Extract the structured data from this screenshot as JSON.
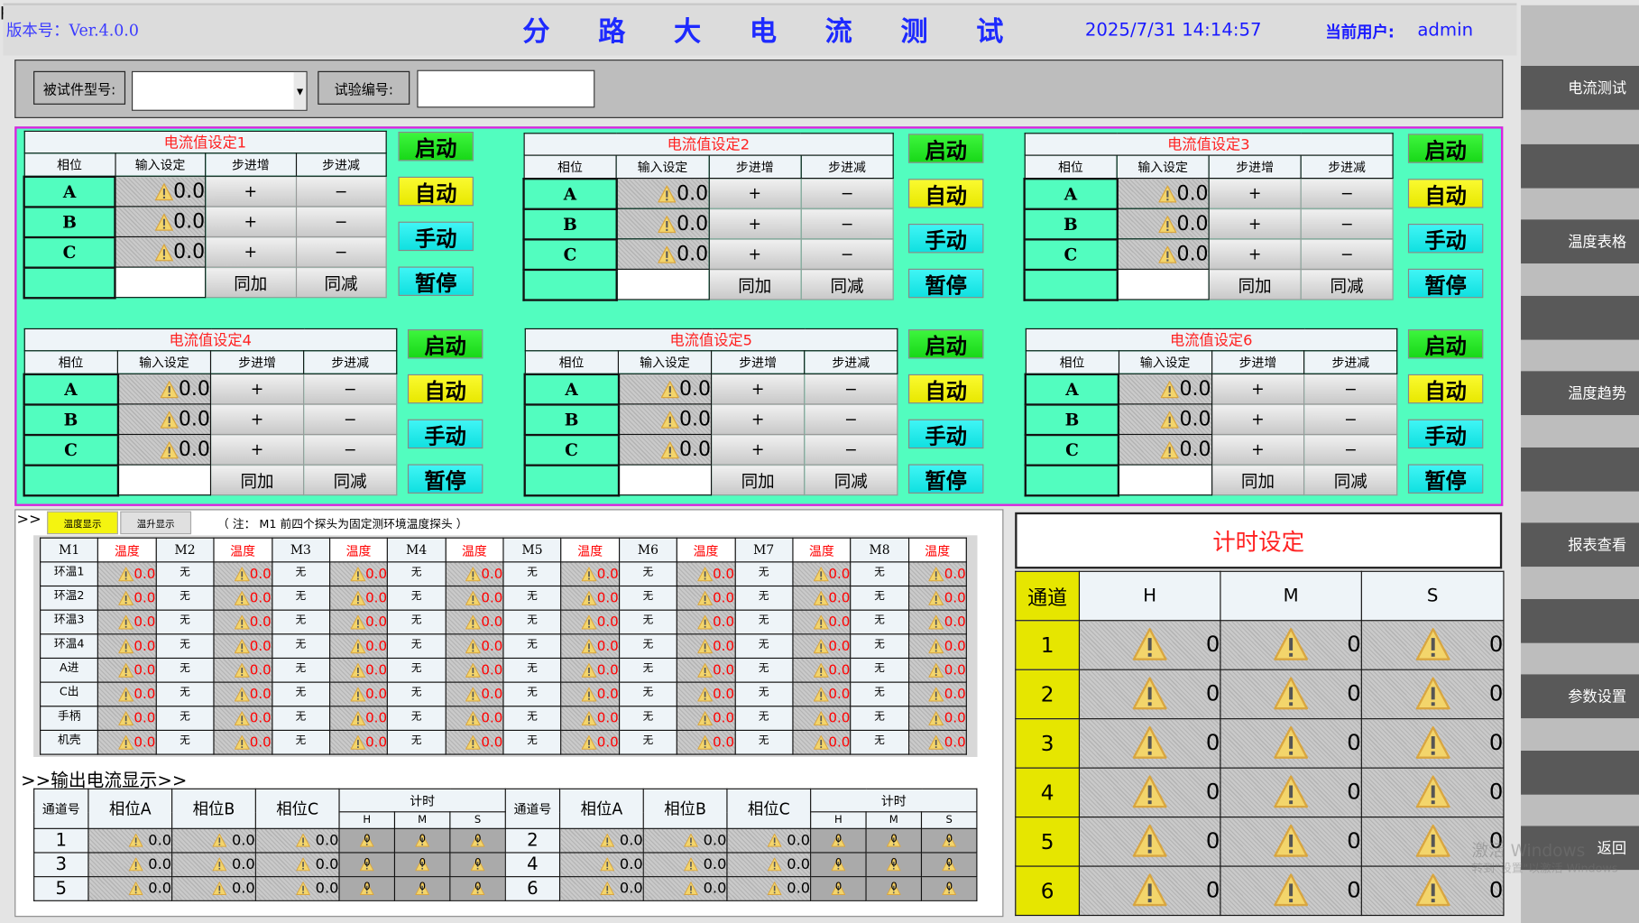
{
  "header": {
    "version": "版本号：Ver.4.0.0",
    "title_chars": [
      "分",
      "路",
      "大",
      "电",
      "流",
      "测",
      "试"
    ],
    "datetime": "2025/7/31 14:14:57",
    "user_label": "当前用户:",
    "user": "admin"
  },
  "inputs": {
    "model_label": "被试件型号:",
    "model_value": "",
    "test_no_label": "试验编号:",
    "test_no_value": ""
  },
  "settings_common": {
    "columns": [
      "相位",
      "输入设定",
      "步进增",
      "步进减"
    ],
    "plus": "+",
    "minus": "−",
    "same_add": "同加",
    "same_sub": "同减",
    "start": "启动",
    "auto": "自动",
    "manual": "手动",
    "pause": "暂停"
  },
  "settings": [
    {
      "title": "电流值设定1",
      "phases": [
        {
          "name": "A",
          "value": "0.0"
        },
        {
          "name": "B",
          "value": "0.0"
        },
        {
          "name": "C",
          "value": "0.0"
        }
      ],
      "extra_value": ""
    },
    {
      "title": "电流值设定2",
      "phases": [
        {
          "name": "A",
          "value": "0.0"
        },
        {
          "name": "B",
          "value": "0.0"
        },
        {
          "name": "C",
          "value": "0.0"
        }
      ],
      "extra_value": ""
    },
    {
      "title": "电流值设定3",
      "phases": [
        {
          "name": "A",
          "value": "0.0"
        },
        {
          "name": "B",
          "value": "0.0"
        },
        {
          "name": "C",
          "value": "0.0"
        }
      ],
      "extra_value": ""
    },
    {
      "title": "电流值设定4",
      "phases": [
        {
          "name": "A",
          "value": "0.0"
        },
        {
          "name": "B",
          "value": "0.0"
        },
        {
          "name": "C",
          "value": "0.0"
        }
      ],
      "extra_value": ""
    },
    {
      "title": "电流值设定5",
      "phases": [
        {
          "name": "A",
          "value": "0.0"
        },
        {
          "name": "B",
          "value": "0.0"
        },
        {
          "name": "C",
          "value": "0.0"
        }
      ],
      "extra_value": ""
    },
    {
      "title": "电流值设定6",
      "phases": [
        {
          "name": "A",
          "value": "0.0"
        },
        {
          "name": "B",
          "value": "0.0"
        },
        {
          "name": "C",
          "value": "0.0"
        }
      ],
      "extra_value": ""
    }
  ],
  "temperature": {
    "prefix": ">>",
    "tabs": [
      "温度显示",
      "温升显示"
    ],
    "active_tab": 0,
    "note": "（ 注： M1 前四个探头为固定测环境温度探头 ）",
    "modules": [
      "M1",
      "M2",
      "M3",
      "M4",
      "M5",
      "M6",
      "M7",
      "M8"
    ],
    "temp_label": "温度",
    "rows": [
      "环温1",
      "环温2",
      "环温3",
      "环温4",
      "A进",
      "C出",
      "手柄",
      "机壳"
    ],
    "module_value": "无",
    "temp_value": "0.0"
  },
  "output": {
    "title": ">>输出电流显示>>",
    "headers": [
      "通道号",
      "相位A",
      "相位B",
      "相位C",
      "计时"
    ],
    "sub_headers": [
      "H",
      "M",
      "S"
    ],
    "rows": [
      {
        "ch": "1",
        "a": "0.0",
        "b": "0.0",
        "c": "0.0",
        "h": "0",
        "m": "0",
        "s": "0"
      },
      {
        "ch": "2",
        "a": "0.0",
        "b": "0.0",
        "c": "0.0",
        "h": "0",
        "m": "0",
        "s": "0"
      },
      {
        "ch": "3",
        "a": "0.0",
        "b": "0.0",
        "c": "0.0",
        "h": "0",
        "m": "0",
        "s": "0"
      },
      {
        "ch": "4",
        "a": "0.0",
        "b": "0.0",
        "c": "0.0",
        "h": "0",
        "m": "0",
        "s": "0"
      },
      {
        "ch": "5",
        "a": "0.0",
        "b": "0.0",
        "c": "0.0",
        "h": "0",
        "m": "0",
        "s": "0"
      },
      {
        "ch": "6",
        "a": "0.0",
        "b": "0.0",
        "c": "0.0",
        "h": "0",
        "m": "0",
        "s": "0"
      }
    ]
  },
  "timer": {
    "title": "计时设定",
    "headers": [
      "通道",
      "H",
      "M",
      "S"
    ],
    "rows": [
      {
        "ch": "1",
        "h": "0",
        "m": "0",
        "s": "0"
      },
      {
        "ch": "2",
        "h": "0",
        "m": "0",
        "s": "0"
      },
      {
        "ch": "3",
        "h": "0",
        "m": "0",
        "s": "0"
      },
      {
        "ch": "4",
        "h": "0",
        "m": "0",
        "s": "0"
      },
      {
        "ch": "5",
        "h": "0",
        "m": "0",
        "s": "0"
      },
      {
        "ch": "6",
        "h": "0",
        "m": "0",
        "s": "0"
      }
    ]
  },
  "sidebar": {
    "items": [
      "电流测试",
      "温度表格",
      "温度趋势",
      "报表查看",
      "参数设置",
      "返回"
    ]
  },
  "watermark": {
    "line1": "激活 Windows",
    "line2": "转到\"设置\"以激活 Windows"
  },
  "colors": {
    "panel_green": "#52fdbf",
    "start_green": "#18d818",
    "auto_yellow": "#e8e800",
    "manual_cyan": "#10e0e0",
    "title_blue": "#1e2aff",
    "alert_red": "#ff2020",
    "channel_yellow": "#e6e600"
  }
}
